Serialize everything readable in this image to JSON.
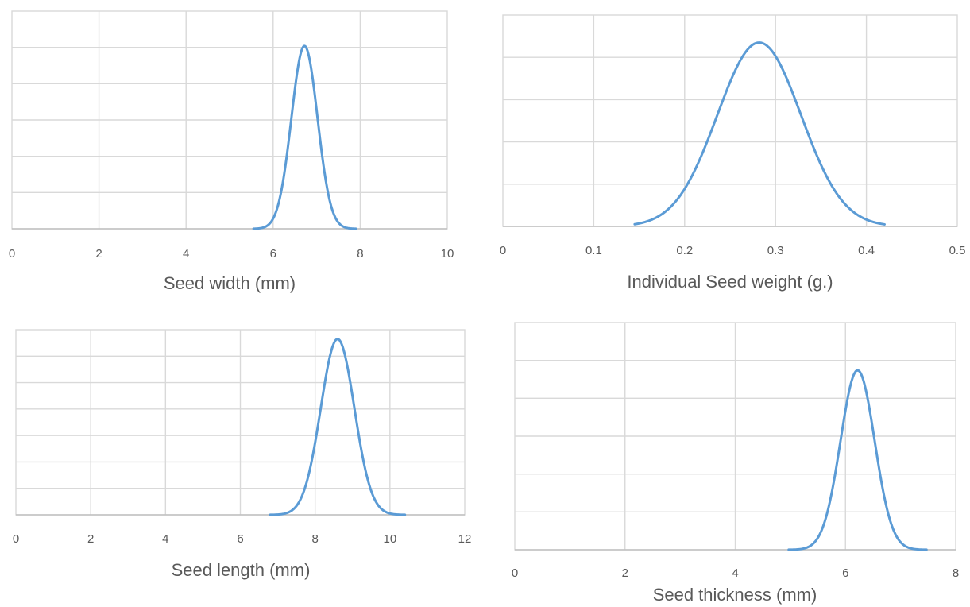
{
  "colors": {
    "series": "#5b9bd5",
    "grid": "#d9d9d9",
    "text": "#595959"
  },
  "chart_data": [
    {
      "type": "line",
      "xlabel": "Seed  width (mm)",
      "xlim": [
        0,
        10
      ],
      "xticks": [
        0,
        2,
        4,
        6,
        8,
        10
      ],
      "h_gridlines": 6,
      "grid": true,
      "series": [
        {
          "distribution": "normal",
          "mean": 6.72,
          "sd": 0.3,
          "x_start": 5.55,
          "x_end": 7.9,
          "peak_fraction_of_axis": 0.84
        }
      ]
    },
    {
      "type": "line",
      "xlabel": "Individual Seed weight (g.)",
      "xlim": [
        0,
        0.5
      ],
      "xticks": [
        0,
        0.1,
        0.2,
        0.3,
        0.4,
        0.5
      ],
      "h_gridlines": 5,
      "grid": true,
      "series": [
        {
          "distribution": "normal",
          "mean": 0.282,
          "sd": 0.046,
          "x_start": 0.145,
          "x_end": 0.42,
          "peak_fraction_of_axis": 0.87
        }
      ]
    },
    {
      "type": "line",
      "xlabel": "Seed length (mm)",
      "xlim": [
        0,
        12
      ],
      "xticks": [
        0,
        2,
        4,
        6,
        8,
        10,
        12
      ],
      "h_gridlines": 7,
      "grid": true,
      "series": [
        {
          "distribution": "normal",
          "mean": 8.6,
          "sd": 0.45,
          "x_start": 6.8,
          "x_end": 10.4,
          "peak_fraction_of_axis": 0.95
        }
      ]
    },
    {
      "type": "line",
      "xlabel": "Seed thickness (mm)",
      "xlim": [
        0,
        8
      ],
      "xticks": [
        0,
        2,
        4,
        6,
        8
      ],
      "h_gridlines": 6,
      "grid": true,
      "series": [
        {
          "distribution": "normal",
          "mean": 6.22,
          "sd": 0.31,
          "x_start": 4.97,
          "x_end": 7.47,
          "peak_fraction_of_axis": 0.79
        }
      ]
    }
  ]
}
